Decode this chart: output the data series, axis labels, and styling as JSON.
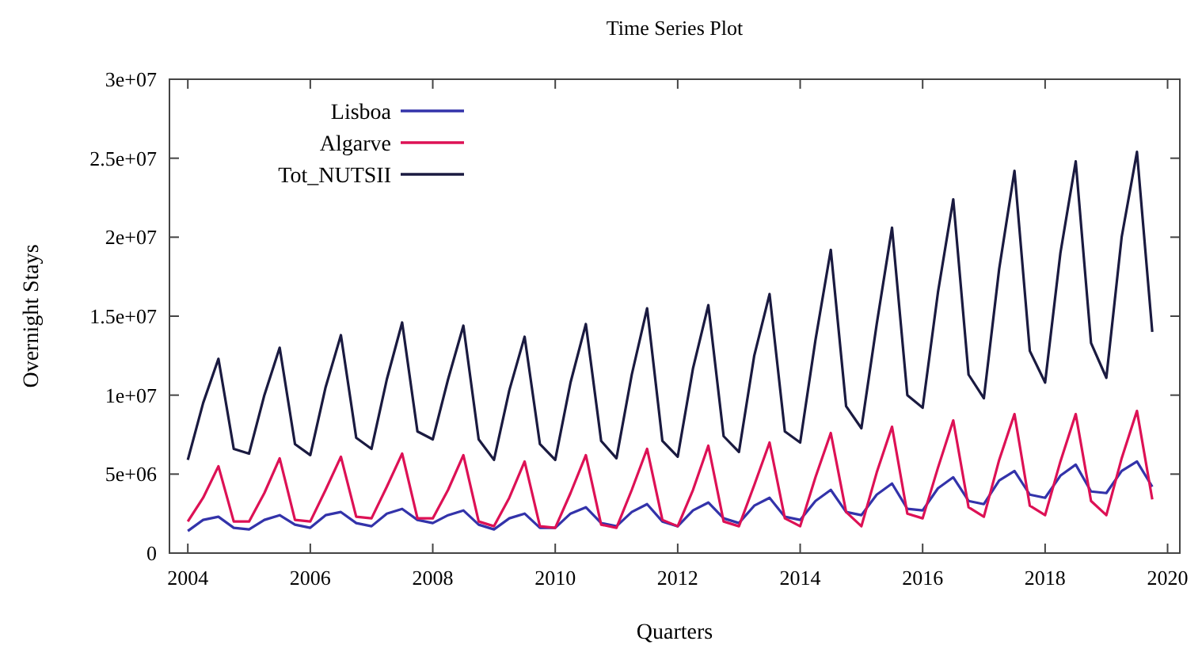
{
  "chart_data": {
    "type": "line",
    "title": "Time Series Plot",
    "xlabel": "Quarters",
    "ylabel": "Overnight Stays",
    "x": [
      2004,
      2004.25,
      2004.5,
      2004.75,
      2005,
      2005.25,
      2005.5,
      2005.75,
      2006,
      2006.25,
      2006.5,
      2006.75,
      2007,
      2007.25,
      2007.5,
      2007.75,
      2008,
      2008.25,
      2008.5,
      2008.75,
      2009,
      2009.25,
      2009.5,
      2009.75,
      2010,
      2010.25,
      2010.5,
      2010.75,
      2011,
      2011.25,
      2011.5,
      2011.75,
      2012,
      2012.25,
      2012.5,
      2012.75,
      2013,
      2013.25,
      2013.5,
      2013.75,
      2014,
      2014.25,
      2014.5,
      2014.75,
      2015,
      2015.25,
      2015.5,
      2015.75,
      2016,
      2016.25,
      2016.5,
      2016.75,
      2017,
      2017.25,
      2017.5,
      2017.75,
      2018,
      2018.25,
      2018.5,
      2018.75,
      2019,
      2019.25,
      2019.5,
      2019.75
    ],
    "series": [
      {
        "name": "Lisboa",
        "color": "#3333aa",
        "values": [
          1400000,
          2100000,
          2300000,
          1600000,
          1500000,
          2100000,
          2400000,
          1800000,
          1600000,
          2400000,
          2600000,
          1900000,
          1700000,
          2500000,
          2800000,
          2100000,
          1900000,
          2400000,
          2700000,
          1800000,
          1500000,
          2200000,
          2500000,
          1600000,
          1600000,
          2500000,
          2900000,
          1900000,
          1700000,
          2600000,
          3100000,
          2000000,
          1700000,
          2700000,
          3200000,
          2200000,
          1900000,
          3000000,
          3500000,
          2300000,
          2100000,
          3300000,
          4000000,
          2600000,
          2400000,
          3700000,
          4400000,
          2800000,
          2700000,
          4100000,
          4800000,
          3300000,
          3100000,
          4600000,
          5200000,
          3700000,
          3500000,
          4900000,
          5600000,
          3900000,
          3800000,
          5200000,
          5800000,
          4200000
        ]
      },
      {
        "name": "Algarve",
        "color": "#dd1155",
        "values": [
          2000000,
          3500000,
          5500000,
          2000000,
          2000000,
          3800000,
          6000000,
          2100000,
          2000000,
          4000000,
          6100000,
          2300000,
          2200000,
          4200000,
          6300000,
          2200000,
          2200000,
          4000000,
          6200000,
          2000000,
          1700000,
          3500000,
          5800000,
          1700000,
          1600000,
          3800000,
          6200000,
          1800000,
          1600000,
          4000000,
          6600000,
          2100000,
          1700000,
          4000000,
          6800000,
          2000000,
          1700000,
          4300000,
          7000000,
          2200000,
          1700000,
          4800000,
          7600000,
          2600000,
          1700000,
          5100000,
          8000000,
          2500000,
          2200000,
          5400000,
          8400000,
          2900000,
          2300000,
          5900000,
          8800000,
          3000000,
          2400000,
          5800000,
          8800000,
          3300000,
          2400000,
          6000000,
          9000000,
          3400000
        ]
      },
      {
        "name": "Tot_NUTSII",
        "color": "#1a1a40",
        "values": [
          5900000,
          9500000,
          12300000,
          6600000,
          6300000,
          10000000,
          13000000,
          6900000,
          6200000,
          10500000,
          13800000,
          7300000,
          6600000,
          11000000,
          14600000,
          7700000,
          7200000,
          11000000,
          14400000,
          7200000,
          5900000,
          10300000,
          13700000,
          6900000,
          5900000,
          10800000,
          14500000,
          7100000,
          6000000,
          11300000,
          15500000,
          7100000,
          6100000,
          11700000,
          15700000,
          7400000,
          6400000,
          12500000,
          16400000,
          7700000,
          7000000,
          13500000,
          19200000,
          9300000,
          7900000,
          14500000,
          20600000,
          10000000,
          9200000,
          16500000,
          22400000,
          11300000,
          9800000,
          18000000,
          24200000,
          12800000,
          10800000,
          19000000,
          24800000,
          13300000,
          11100000,
          20000000,
          25400000,
          14000000
        ]
      }
    ],
    "xlim": [
      2003.7,
      2020.2
    ],
    "xticks": [
      2004,
      2006,
      2008,
      2010,
      2012,
      2014,
      2016,
      2018,
      2020
    ],
    "ylim": [
      0,
      30000000
    ],
    "yticks": [
      0,
      {
        "value": 5000000,
        "label": "5e+06"
      },
      {
        "value": 10000000,
        "label": "1e+07"
      },
      {
        "value": 15000000,
        "label": "1.5e+07"
      },
      {
        "value": 20000000,
        "label": "2e+07"
      },
      {
        "value": 25000000,
        "label": "2.5e+07"
      },
      {
        "value": 30000000,
        "label": "3e+07"
      }
    ],
    "legend": "top left",
    "grid": false,
    "marker": "none",
    "line_style": "solid"
  }
}
